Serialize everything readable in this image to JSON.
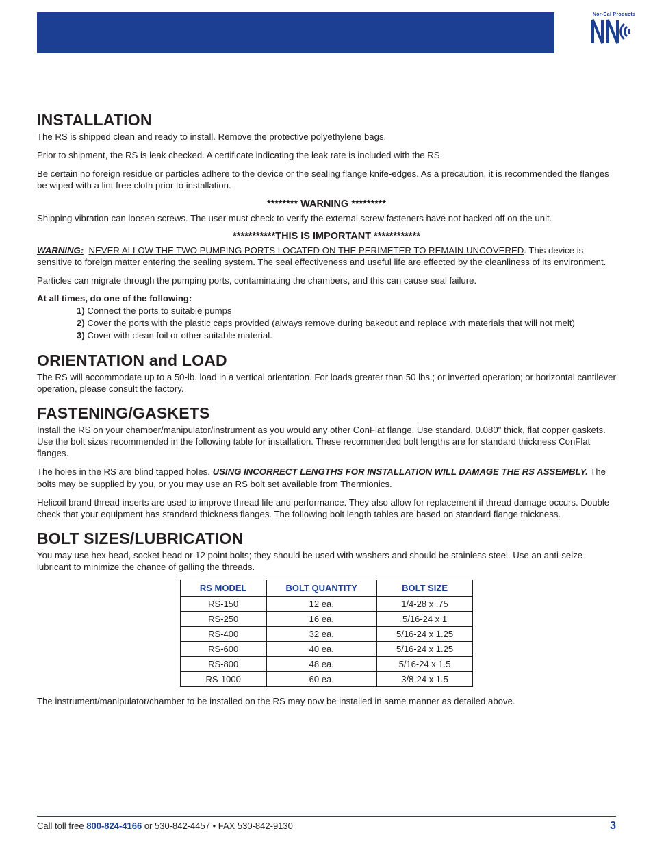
{
  "logo": {
    "top_text": "Nor-Cal Products"
  },
  "sections": {
    "installation": {
      "heading": "INSTALLATION",
      "p1": "The RS is shipped clean and ready to install. Remove the protective polyethylene bags.",
      "p2": "Prior to shipment, the RS is leak checked. A certificate indicating the leak rate is included with the RS.",
      "p3": "Be certain no foreign residue or particles adhere to the device or the sealing flange knife-edges. As a precaution, it is recommended the flanges be wiped with a lint free cloth prior to installation.",
      "warning_banner": "******** WARNING *********",
      "warning_text": "Shipping vibration can loosen screws. The user must check to verify the external screw fasteners have not backed off on the unit.",
      "important_banner": "***********THIS IS IMPORTANT ************",
      "warning_label": "WARNING:",
      "warning2_underline": "NEVER ALLOW THE TWO PUMPING PORTS LOCATED ON THE PERIMETER TO REMAIN UNCOVERED",
      "warning2_tail": ". This device is sensitive to foreign matter entering the sealing system. The seal effectiveness and useful life are effected by the cleanliness of its environment.",
      "particles": "Particles can migrate through the pumping ports, contaminating the chambers, and this can cause seal failure.",
      "list_intro": "At all times, do one of the following:",
      "items": [
        {
          "n": "1)",
          "t": " Connect the ports to suitable pumps"
        },
        {
          "n": "2)",
          "t": " Cover the ports with the plastic caps provided (always remove during bakeout and replace with materials that will not melt)"
        },
        {
          "n": "3)",
          "t": " Cover with clean foil or other suitable material."
        }
      ]
    },
    "orientation": {
      "heading": "ORIENTATION and LOAD",
      "p1": "The RS will accommodate up to a 50-lb. load in a vertical orientation. For loads greater than 50 lbs.; or inverted operation; or horizontal cantilever operation, please consult the factory."
    },
    "fastening": {
      "heading": "FASTENING/GASKETS",
      "p1": "Install the RS on your chamber/manipulator/instrument as you would any other ConFlat flange. Use standard, 0.080\" thick, flat copper gaskets. Use the bolt sizes recommended in the following table for installation. These recommended bolt lengths are for standard thickness ConFlat flanges.",
      "p2_pre": "The holes in the RS are blind tapped holes. ",
      "p2_bold": "USING INCORRECT LENGTHS FOR INSTALLATION WILL DAMAGE THE RS ASSEMBLY.",
      "p2_post": " The bolts may be supplied by you, or you may use an RS bolt set available from Thermionics.",
      "p3": "Helicoil brand thread inserts are used to improve thread life and performance. They also allow for replacement if thread damage occurs. Double check that your equipment has standard thickness flanges. The following bolt length tables are based on standard flange thickness."
    },
    "bolts": {
      "heading": "BOLT SIZES/LUBRICATION",
      "p1": "You may use hex head, socket head or 12 point bolts; they should be used with washers and should be stainless steel. Use an anti-seize lubricant to minimize the chance of galling the threads.",
      "table": {
        "headers": [
          "RS MODEL",
          "BOLT QUANTITY",
          "BOLT SIZE"
        ],
        "rows": [
          [
            "RS-150",
            "12 ea.",
            "1/4-28 x .75"
          ],
          [
            "RS-250",
            "16 ea.",
            "5/16-24 x 1"
          ],
          [
            "RS-400",
            "32 ea.",
            "5/16-24 x 1.25"
          ],
          [
            "RS-600",
            "40 ea.",
            "5/16-24 x 1.25"
          ],
          [
            "RS-800",
            "48 ea.",
            "5/16-24 x 1.5"
          ],
          [
            "RS-1000",
            "60 ea.",
            "3/8-24 x 1.5"
          ]
        ]
      },
      "p2": "The instrument/manipulator/chamber to be installed on the RS may now be installed in same manner as detailed above."
    }
  },
  "footer": {
    "pre": "Call toll free ",
    "tollfree": "800-824-4166",
    "mid": " or 530-842-4457 • FAX 530-842-9130",
    "page": "3"
  },
  "colors": {
    "brand_blue": "#1c3f94",
    "text": "#231f20",
    "background": "#ffffff"
  }
}
